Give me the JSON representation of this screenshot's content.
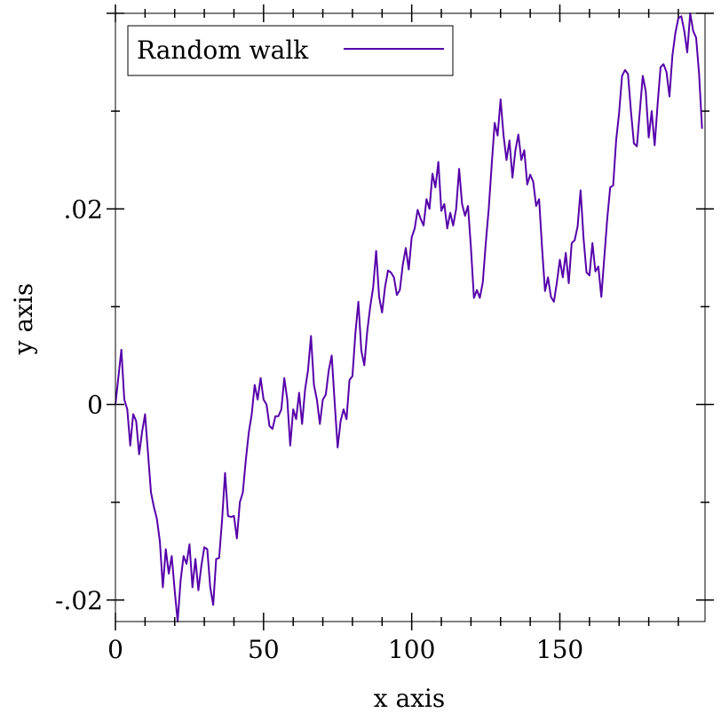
{
  "chart_data": {
    "type": "line",
    "xlabel": "x axis",
    "ylabel": "y axis",
    "xlim": [
      0,
      199
    ],
    "ylim": [
      -0.0222,
      0.04
    ],
    "grid": false,
    "legend_position": "top-left",
    "x_major_ticks": [
      0,
      50,
      100,
      150
    ],
    "x_tick_labels": [
      "0",
      "50",
      "100",
      "150"
    ],
    "y_major_ticks": [
      -0.02,
      0,
      0.02
    ],
    "y_tick_labels": [
      ".02",
      "0",
      "-.02"
    ],
    "y_tick_label_order": "descending",
    "series": [
      {
        "name": "Random walk",
        "color": "#5500aa",
        "values": [
          0.0,
          0.0028,
          0.0056,
          0.0005,
          -0.0005,
          -0.0042,
          -0.001,
          -0.0017,
          -0.0051,
          -0.0028,
          -0.001,
          -0.005,
          -0.009,
          -0.0105,
          -0.0117,
          -0.014,
          -0.0187,
          -0.0148,
          -0.0173,
          -0.0155,
          -0.019,
          -0.0222,
          -0.018,
          -0.0155,
          -0.0163,
          -0.0143,
          -0.0187,
          -0.0158,
          -0.019,
          -0.0165,
          -0.0146,
          -0.0148,
          -0.0187,
          -0.0205,
          -0.0158,
          -0.0157,
          -0.0118,
          -0.007,
          -0.0114,
          -0.0115,
          -0.0114,
          -0.0137,
          -0.01,
          -0.009,
          -0.0057,
          -0.0029,
          -0.001,
          0.002,
          0.0005,
          0.0027,
          0.0005,
          0.0,
          -0.0022,
          -0.0025,
          -0.0012,
          -0.0012,
          -0.0005,
          0.0027,
          0.0005,
          -0.0042,
          -0.0005,
          -0.0015,
          0.0012,
          -0.002,
          0.0015,
          0.0035,
          0.007,
          0.002,
          0.0005,
          -0.002,
          0.0005,
          0.001,
          0.0035,
          0.005,
          0.0002,
          -0.0044,
          -0.0017,
          -0.0005,
          -0.0015,
          0.0025,
          0.0029,
          0.0073,
          0.0105,
          0.0055,
          0.004,
          0.0075,
          0.01,
          0.012,
          0.0157,
          0.011,
          0.0094,
          0.012,
          0.0137,
          0.0135,
          0.013,
          0.0112,
          0.0117,
          0.0143,
          0.016,
          0.0138,
          0.0171,
          0.018,
          0.0199,
          0.019,
          0.0183,
          0.021,
          0.02,
          0.0236,
          0.0222,
          0.0248,
          0.0198,
          0.0205,
          0.018,
          0.0196,
          0.0183,
          0.02,
          0.0241,
          0.0205,
          0.0193,
          0.0203,
          0.016,
          0.0109,
          0.0117,
          0.0109,
          0.0125,
          0.0165,
          0.02,
          0.0245,
          0.0288,
          0.0275,
          0.0312,
          0.0275,
          0.025,
          0.027,
          0.0232,
          0.026,
          0.0276,
          0.025,
          0.026,
          0.0225,
          0.0235,
          0.0228,
          0.0203,
          0.021,
          0.016,
          0.0116,
          0.013,
          0.011,
          0.0105,
          0.0125,
          0.0148,
          0.013,
          0.0155,
          0.0124,
          0.0165,
          0.0168,
          0.0182,
          0.0219,
          0.017,
          0.0135,
          0.0132,
          0.0165,
          0.0136,
          0.0141,
          0.011,
          0.015,
          0.019,
          0.0222,
          0.0224,
          0.027,
          0.0298,
          0.0336,
          0.0342,
          0.0338,
          0.03,
          0.0267,
          0.0264,
          0.03,
          0.0336,
          0.032,
          0.0273,
          0.03,
          0.0265,
          0.0307,
          0.0345,
          0.0348,
          0.034,
          0.0315,
          0.0357,
          0.038,
          0.0395,
          0.0397,
          0.0382,
          0.036,
          0.04,
          0.0382,
          0.0375,
          0.0338,
          0.0282
        ]
      }
    ]
  }
}
